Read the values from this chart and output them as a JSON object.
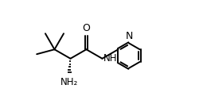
{
  "background": "#ffffff",
  "line_color": "#000000",
  "line_width": 1.4,
  "font_size": 8.5,
  "figsize": [
    2.5,
    1.36
  ],
  "dpi": 100,
  "xlim": [
    0.5,
    7.0
  ],
  "ylim": [
    1.2,
    4.5
  ]
}
